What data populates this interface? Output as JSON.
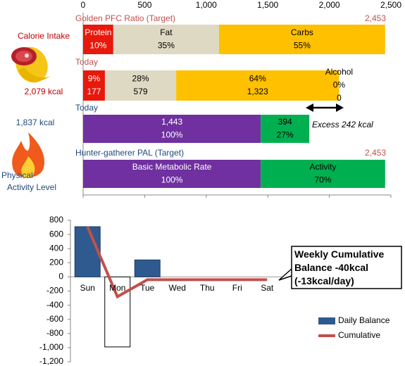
{
  "chart_data": [
    {
      "type": "stacked-hbar",
      "xlim": [
        0,
        2500
      ],
      "xticks": [
        0,
        500,
        {
          "value": 1000,
          "label": "1,000"
        },
        {
          "value": 1500,
          "label": "1,500"
        },
        {
          "value": 2000,
          "label": "2,000"
        },
        {
          "value": 2500,
          "label": "2,500"
        }
      ],
      "side_labels": [
        "Calorie Intake",
        "2,079 kcal",
        "1,837 kcal",
        "Physical",
        "Activity Level"
      ],
      "annotation": "Excess 242 kcal",
      "rows": [
        {
          "title": "Golden PFC Ratio (Target)",
          "title_color": "#c0504d",
          "total_label": "2,453",
          "segments": [
            {
              "value": 245,
              "color": "#e8180c",
              "text_color": "#ffffff",
              "lines": [
                "Protein",
                "10%"
              ]
            },
            {
              "value": 859,
              "color": "#ddd9c3",
              "text_color": "#000000",
              "lines": [
                "Fat",
                "35%"
              ]
            },
            {
              "value": 1349,
              "color": "#ffc000",
              "text_color": "#000000",
              "lines": [
                "Carbs",
                "55%"
              ]
            }
          ]
        },
        {
          "title": "Today",
          "title_color": "#c0504d",
          "segments": [
            {
              "value": 177,
              "color": "#e8180c",
              "text_color": "#ffffff",
              "lines": [
                "9%",
                "177"
              ]
            },
            {
              "value": 579,
              "color": "#ddd9c3",
              "text_color": "#000000",
              "lines": [
                "28%",
                "579"
              ]
            },
            {
              "value": 1323,
              "color": "#ffc000",
              "text_color": "#000000",
              "lines": [
                "64%",
                "1,323"
              ]
            },
            {
              "value": 0,
              "color": "#7f7f7f",
              "text_color": "#000000",
              "lines": [
                "Alcohol",
                "0%",
                "0"
              ]
            }
          ]
        },
        {
          "title": "Today",
          "title_color": "#1f497d",
          "segments": [
            {
              "value": 1443,
              "color": "#7030a0",
              "text_color": "#ffffff",
              "lines": [
                "1,443",
                "100%"
              ]
            },
            {
              "value": 394,
              "color": "#00b050",
              "text_color": "#000000",
              "lines": [
                "394",
                "27%"
              ]
            }
          ]
        },
        {
          "title": "Hunter-gatherer  PAL (Target)",
          "title_color": "#1f497d",
          "total_label": "2,453",
          "segments": [
            {
              "value": 1443,
              "color": "#7030a0",
              "text_color": "#ffffff",
              "lines": [
                "Basic Metabolic Rate",
                "100%"
              ]
            },
            {
              "value": 1010,
              "color": "#00b050",
              "text_color": "#000000",
              "lines": [
                "Activity",
                "70%"
              ]
            }
          ]
        }
      ]
    },
    {
      "type": "bar-line",
      "categories": [
        "Sun",
        "Mon",
        "Tue",
        "Wed",
        "Thu",
        "Fri",
        "Sat"
      ],
      "series": [
        {
          "name": "Daily Balance",
          "type": "bar",
          "color": "#2e5a8f",
          "invert_if_negative": true,
          "values": [
            710,
            -990,
            240,
            0,
            0,
            0,
            0
          ]
        },
        {
          "name": "Cumulative",
          "type": "line",
          "color": "#c0504d",
          "values": [
            710,
            -280,
            -40,
            -40,
            -40,
            -40,
            -40
          ]
        }
      ],
      "ylim": [
        -1200,
        800
      ],
      "yticks": [
        800,
        600,
        400,
        200,
        0,
        -200,
        -400,
        -600,
        -800,
        {
          "value": -1000,
          "label": "-1,000"
        },
        {
          "value": -1200,
          "label": "-1,200"
        }
      ],
      "annotation": "Weekly Cumulative Balance -40kcal (-13kcal/day)"
    }
  ]
}
